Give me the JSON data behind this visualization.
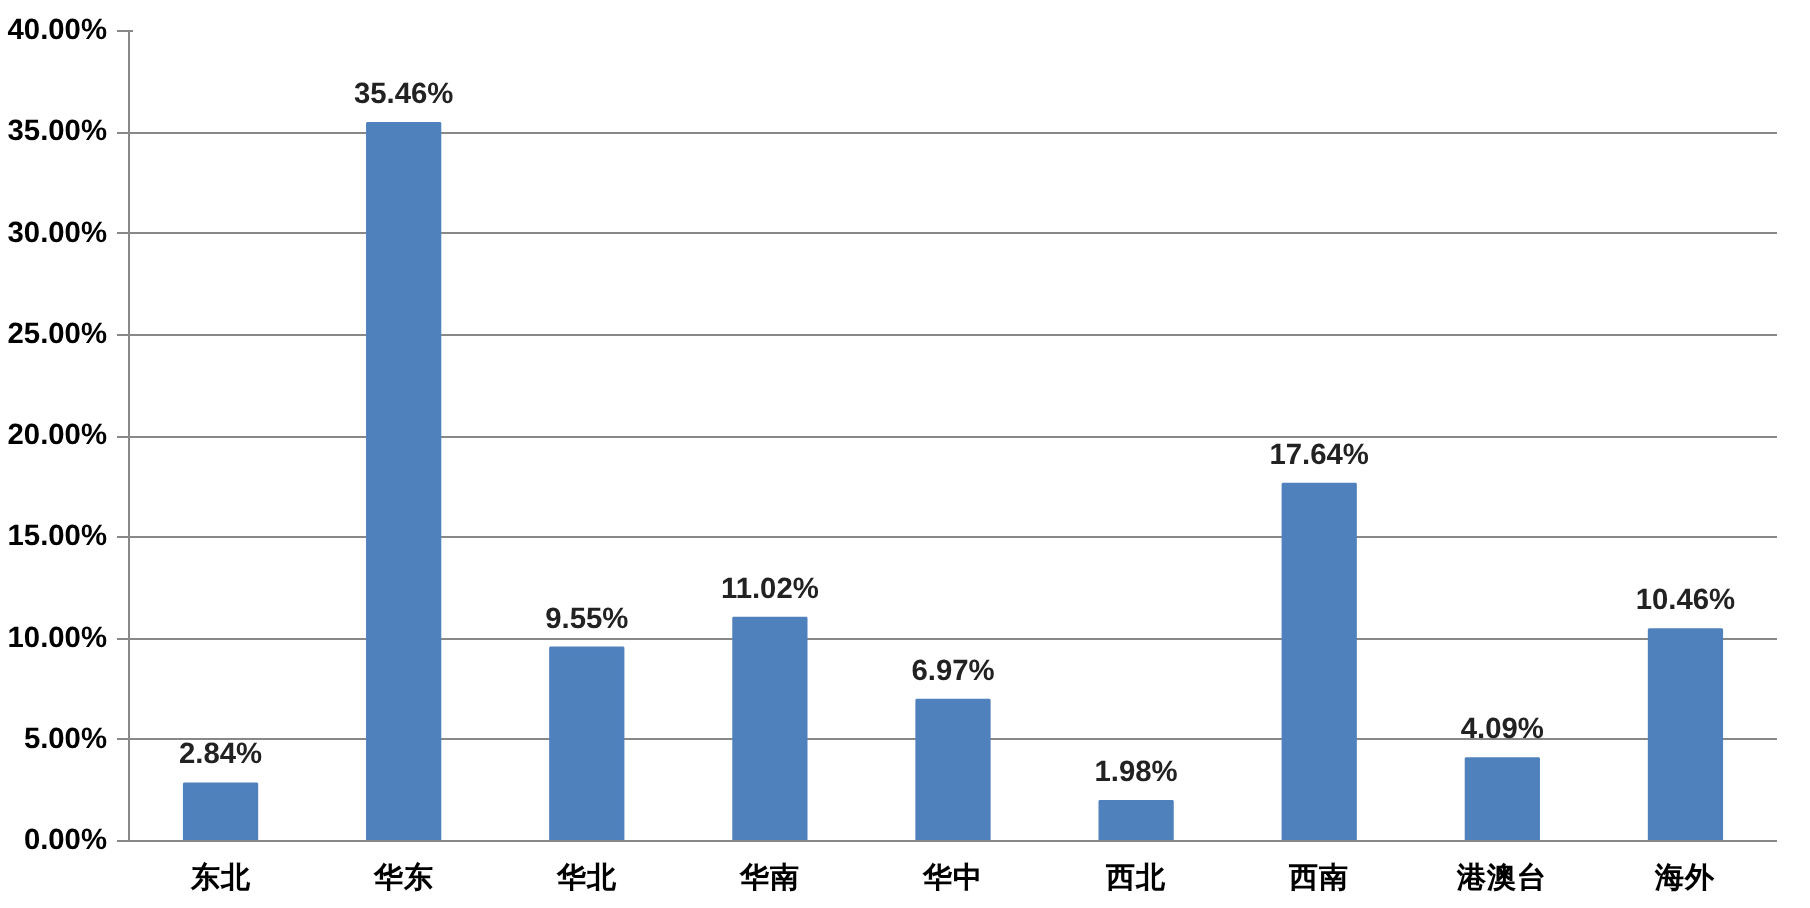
{
  "chart_data": {
    "type": "bar",
    "categories": [
      "东北",
      "华东",
      "华北",
      "华南",
      "华中",
      "西北",
      "西南",
      "港澳台",
      "海外"
    ],
    "values": [
      2.84,
      35.46,
      9.55,
      11.02,
      6.97,
      1.98,
      17.64,
      4.09,
      10.46
    ],
    "value_labels": [
      "2.84%",
      "35.46%",
      "9.55%",
      "11.02%",
      "6.97%",
      "1.98%",
      "17.64%",
      "4.09%",
      "10.46%"
    ],
    "color": "#4f81bd",
    "ylim": [
      0,
      40
    ],
    "yticks": [
      {
        "value": 0,
        "label": "0.00%"
      },
      {
        "value": 5,
        "label": "5.00%"
      },
      {
        "value": 10,
        "label": "10.00%"
      },
      {
        "value": 15,
        "label": "15.00%"
      },
      {
        "value": 20,
        "label": "20.00%"
      },
      {
        "value": 25,
        "label": "25.00%"
      },
      {
        "value": 30,
        "label": "30.00%"
      },
      {
        "value": 35,
        "label": "35.00%"
      },
      {
        "value": 40,
        "label": "40.00%"
      }
    ],
    "grid": "y"
  }
}
